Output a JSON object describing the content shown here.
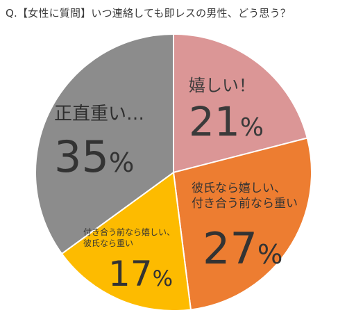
{
  "chart_data": {
    "type": "pie",
    "title": "Q.【女性に質問】いつ連絡しても即レスの男性、どう思う？",
    "slices": [
      {
        "label": "嬉しい！",
        "label_lines": [
          "嬉しい！"
        ],
        "value": 21,
        "value_text": "21",
        "color": "#db9696"
      },
      {
        "label": "彼氏なら嬉しい、付き合う前なら重い",
        "label_lines": [
          "彼氏なら嬉しい、",
          "付き合う前なら重い"
        ],
        "value": 27,
        "value_text": "27",
        "color": "#ed7d31"
      },
      {
        "label": "付き合う前なら嬉しい、彼氏なら重い",
        "label_lines": [
          "付き合う前なら嬉しい、",
          "彼氏なら重い"
        ],
        "value": 17,
        "value_text": "17",
        "color": "#fdbb00"
      },
      {
        "label": "正直重い…",
        "label_lines": [
          "正直重い…"
        ],
        "value": 35,
        "value_text": "35",
        "color": "#8c8c8c"
      }
    ],
    "unit": "%",
    "start": "top",
    "direction": "clockwise"
  }
}
